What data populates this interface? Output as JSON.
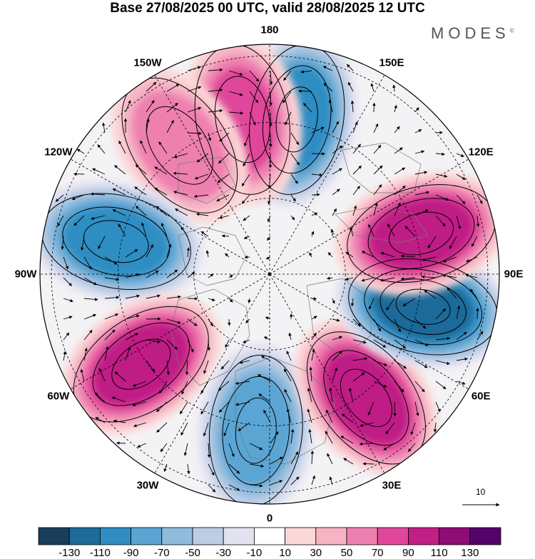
{
  "title": "Base 27/08/2025 00 UTC, valid 28/08/2025 12 UTC",
  "brand": "MODES",
  "brand_mark": "©",
  "longitude_labels": [
    "180",
    "150E",
    "120E",
    "90E",
    "60E",
    "30E",
    "0",
    "30W",
    "60W",
    "90W",
    "120W",
    "150W"
  ],
  "vector_reference": {
    "value": "10"
  },
  "colorbar": {
    "labels": [
      "-130",
      "-110",
      "-90",
      "-70",
      "-50",
      "-30",
      "-10",
      "10",
      "30",
      "50",
      "70",
      "90",
      "110",
      "130"
    ],
    "colors": [
      "#183e5c",
      "#1d6b9a",
      "#2f8dc2",
      "#5aa5d3",
      "#90bbdd",
      "#bccde6",
      "#e3e2f1",
      "#ffffff",
      "#fbd8d8",
      "#f6b3c4",
      "#ee80b0",
      "#e0479a",
      "#c01f86",
      "#8f0b76",
      "#55036a"
    ]
  },
  "anomaly_centers": [
    {
      "name": "north-pacific-low",
      "lon": 170,
      "value": -110
    },
    {
      "name": "bering-high",
      "lon": -170,
      "value": 80
    },
    {
      "name": "east-siberia-high",
      "lon": -145,
      "value": 70
    },
    {
      "name": "siberia-low",
      "lon": -102,
      "value": -110
    },
    {
      "name": "west-siberia-high",
      "lon": -55,
      "value": 110
    },
    {
      "name": "europe-low",
      "lon": -5,
      "value": -90
    },
    {
      "name": "north-atlantic-high",
      "lon": 38,
      "value": 110
    },
    {
      "name": "canada-low",
      "lon": 78,
      "value": -130
    },
    {
      "name": "north-america-high",
      "lon": 105,
      "value": 110
    }
  ]
}
